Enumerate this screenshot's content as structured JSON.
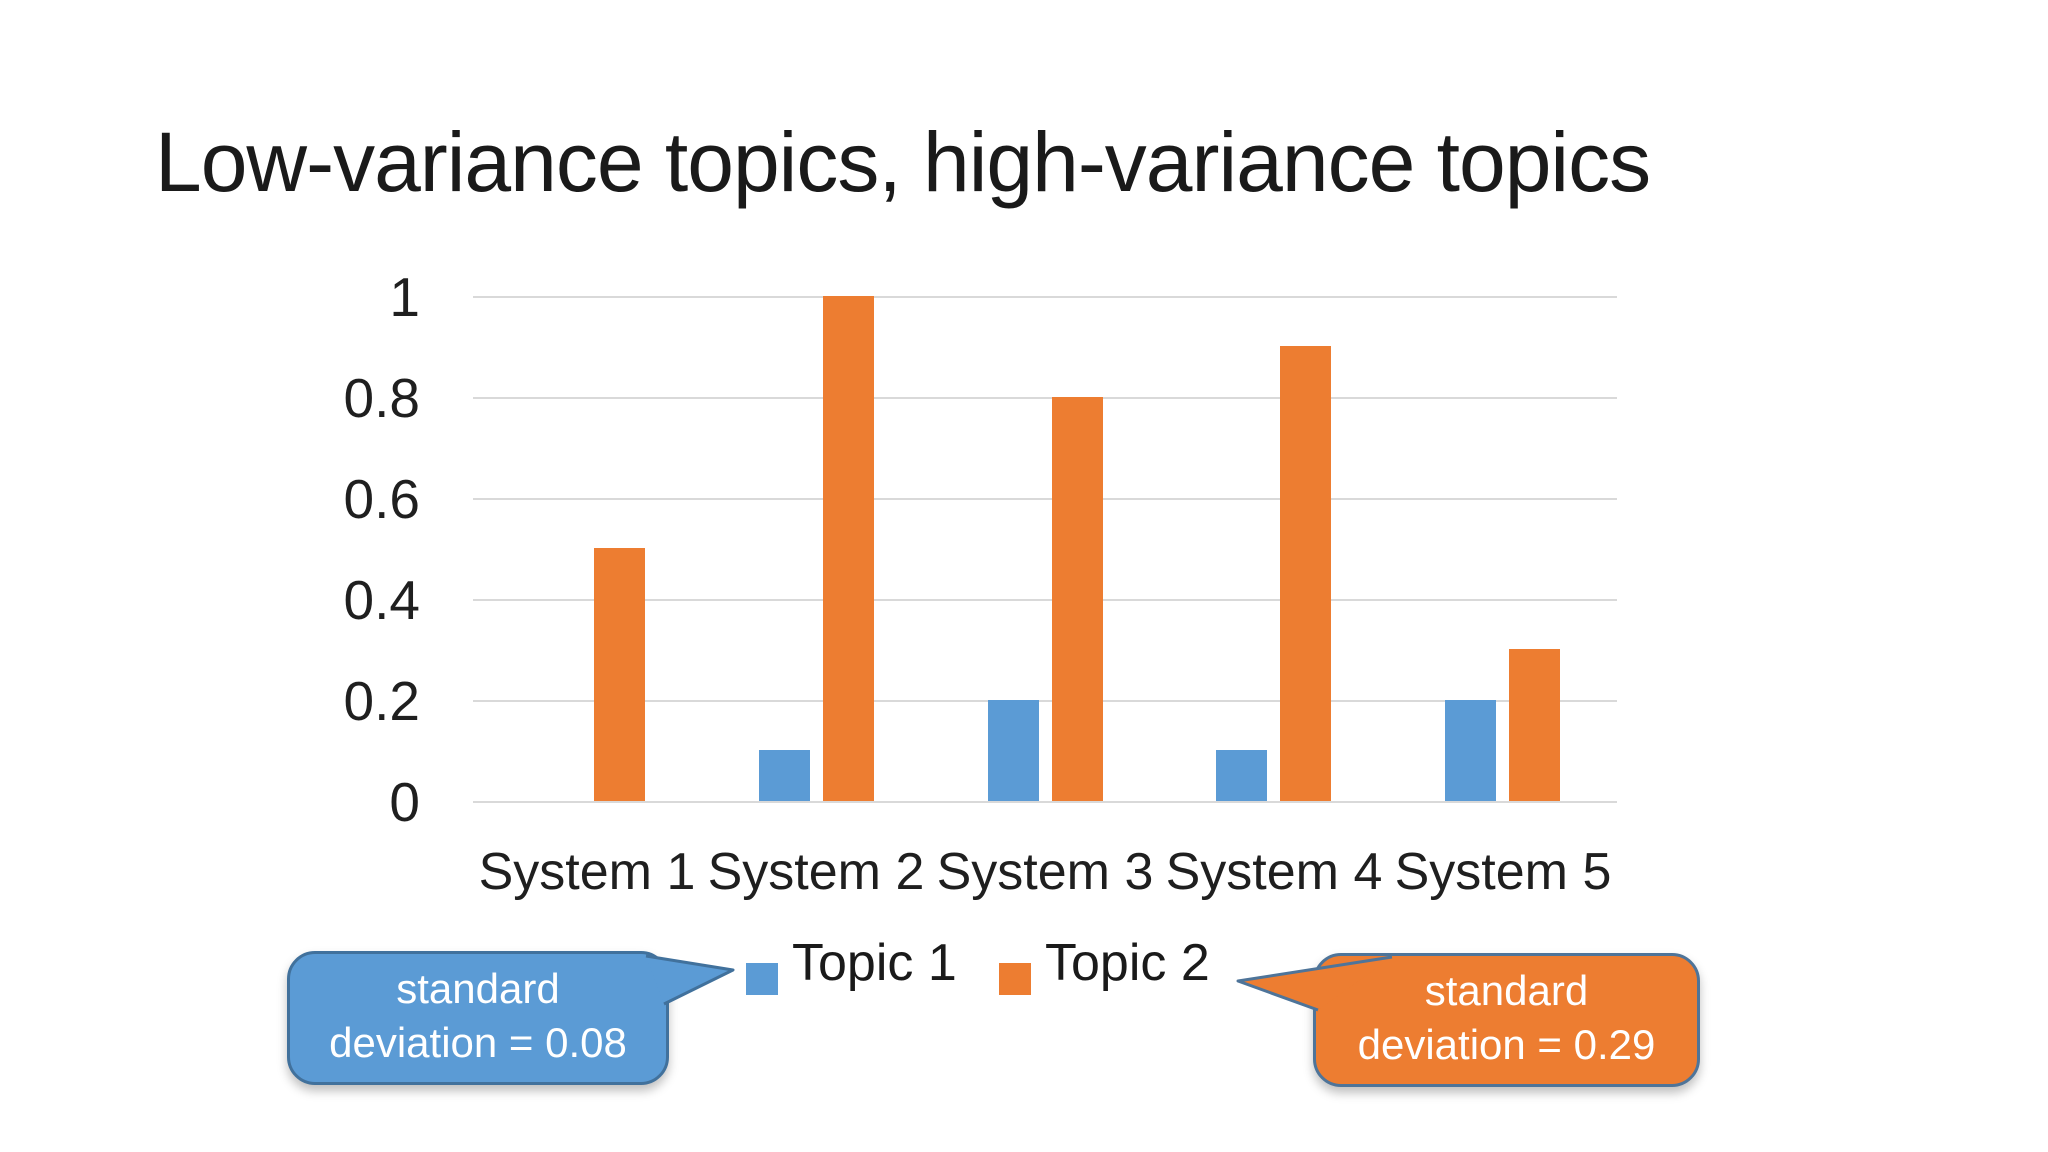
{
  "slide": {
    "title": "Low-variance topics, high-variance topics",
    "background_color": "#ffffff"
  },
  "chart_data": {
    "type": "bar",
    "title": "",
    "categories": [
      "System 1",
      "System 2",
      "System 3",
      "System 4",
      "System 5"
    ],
    "series": [
      {
        "name": "Topic 1",
        "color": "#5B9BD5",
        "values": [
          0,
          0.1,
          0.2,
          0.1,
          0.2
        ]
      },
      {
        "name": "Topic 2",
        "color": "#ED7D31",
        "values": [
          0.5,
          1.0,
          0.8,
          0.9,
          0.3
        ]
      }
    ],
    "xlabel": "",
    "ylabel": "",
    "ylim": [
      0,
      1
    ],
    "yticks": {
      "labels": [
        "1",
        "0.8",
        "0.6",
        "0.4",
        "0.2",
        "0"
      ],
      "values": [
        1,
        0.8,
        0.6,
        0.4,
        0.2,
        0
      ]
    },
    "grid": "horizontal",
    "gridline_color": "#d9d9d9",
    "legend_position": "bottom"
  },
  "callouts": {
    "topic1": {
      "text": "standard deviation = 0.08",
      "lines": [
        "standard",
        "deviation = 0.08"
      ],
      "fill": "#5B9BD5",
      "border": "#41719C",
      "text_color": "#ffffff"
    },
    "topic2": {
      "text": "standard deviation = 0.29",
      "lines": [
        "standard",
        "deviation = 0.29"
      ],
      "fill": "#ED7D31",
      "border": "#4E7499",
      "text_color": "#ffffff"
    }
  }
}
